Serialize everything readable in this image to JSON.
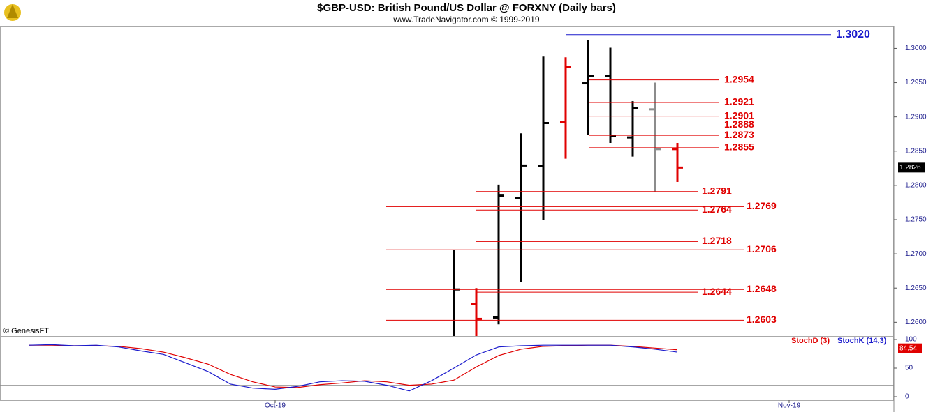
{
  "header": {
    "title": "$GBP-USD:  British Pound/US Dollar @ FORXNY  (Daily bars)",
    "subtitle": "www.TradeNavigator.com © 1999-2019",
    "credit": "© GenesisFT"
  },
  "chart_data": [
    {
      "type": "ohlc",
      "x": [
        19,
        20,
        21,
        22,
        23,
        24,
        25,
        26,
        27,
        28,
        29
      ],
      "open": [
        null,
        1.2627,
        1.2607,
        1.2782,
        1.2828,
        1.2892,
        1.2949,
        1.296,
        1.287,
        1.2911,
        1.2853
      ],
      "high": [
        1.2706,
        1.265,
        1.2801,
        1.2876,
        1.2988,
        1.2987,
        1.3012,
        1.3001,
        1.2923,
        1.295,
        1.2862
      ],
      "low": [
        1.257,
        1.2578,
        1.2597,
        1.2659,
        1.275,
        1.2839,
        1.2874,
        1.2862,
        1.2842,
        1.279,
        1.2805
      ],
      "close": [
        1.2648,
        1.2605,
        1.2785,
        1.2829,
        1.2891,
        1.2973,
        1.296,
        1.2872,
        1.2913,
        1.2853,
        1.2826
      ],
      "colors": [
        "#000000",
        "#e00000",
        "#000000",
        "#000000",
        "#000000",
        "#e00000",
        "#000000",
        "#000000",
        "#000000",
        "#8c8c8c",
        "#e00000"
      ],
      "xlim": [
        -1.3125,
        38.6875
      ],
      "ylim": [
        1.2581,
        1.3032
      ],
      "yticks": [
        {
          "value": 1.26,
          "label": "1.2600"
        },
        {
          "value": 1.265,
          "label": "1.2650"
        },
        {
          "value": 1.27,
          "label": "1.2700"
        },
        {
          "value": 1.275,
          "label": "1.2750"
        },
        {
          "value": 1.28,
          "label": "1.2800"
        },
        {
          "value": 1.285,
          "label": "1.2850"
        },
        {
          "value": 1.29,
          "label": "1.2900"
        },
        {
          "value": 1.295,
          "label": "1.2950"
        },
        {
          "value": 1.3,
          "label": "1.3000"
        }
      ],
      "last_price": {
        "value": 1.2826,
        "label": "1.2826"
      },
      "levels": [
        {
          "value": 1.302,
          "label": "1.3020",
          "color": "#1a1acc"
        },
        {
          "value": 1.2954,
          "label": "1.2954",
          "color": "#e00000"
        },
        {
          "value": 1.2921,
          "label": "1.2921",
          "color": "#e00000"
        },
        {
          "value": 1.2901,
          "label": "1.2901",
          "color": "#e00000"
        },
        {
          "value": 1.2888,
          "label": "1.2888",
          "color": "#e00000"
        },
        {
          "value": 1.2873,
          "label": "1.2873",
          "color": "#e00000"
        },
        {
          "value": 1.2855,
          "label": "1.2855",
          "color": "#e00000"
        },
        {
          "value": 1.2791,
          "label": "1.2791",
          "color": "#e00000"
        },
        {
          "value": 1.2769,
          "label": "1.2769",
          "color": "#e00000"
        },
        {
          "value": 1.2764,
          "label": "1.2764",
          "color": "#e00000"
        },
        {
          "value": 1.2718,
          "label": "1.2718",
          "color": "#e00000"
        },
        {
          "value": 1.2706,
          "label": "1.2706",
          "color": "#e00000"
        },
        {
          "value": 1.2648,
          "label": "1.2648",
          "color": "#e00000"
        },
        {
          "value": 1.2644,
          "label": "1.2644",
          "color": "#e00000"
        },
        {
          "value": 1.2603,
          "label": "1.2603",
          "color": "#e00000"
        }
      ]
    },
    {
      "type": "line",
      "x": [
        0,
        1,
        2,
        3,
        4,
        5,
        6,
        7,
        8,
        9,
        10,
        11,
        12,
        13,
        14,
        15,
        16,
        17,
        18,
        19,
        20,
        21,
        22,
        23,
        24,
        25,
        26,
        27,
        28,
        29
      ],
      "series": [
        {
          "name": "StochD (3)",
          "color": "#e00000",
          "values": [
            90,
            90,
            89,
            89,
            88,
            84,
            78,
            68,
            57,
            39,
            26,
            17,
            16,
            21,
            24,
            28,
            26,
            20,
            22,
            29,
            52,
            72,
            83,
            88,
            89,
            90,
            90,
            88,
            85,
            82
          ]
        },
        {
          "name": "StochK (14,3)",
          "color": "#1a1acc",
          "values": [
            90,
            91,
            89,
            90,
            87,
            80,
            74,
            59,
            44,
            22,
            15,
            13,
            18,
            26,
            28,
            27,
            20,
            10,
            28,
            50,
            73,
            87,
            89,
            90,
            90,
            90,
            90,
            87,
            83,
            78
          ]
        }
      ],
      "xlim": [
        -1.3125,
        38.6875
      ],
      "xticks": [
        {
          "value": 11,
          "label": "Oct-19"
        },
        {
          "value": 34,
          "label": "Nov-19"
        }
      ],
      "ylim": [
        0,
        100
      ],
      "yticks": [
        0,
        50,
        100
      ],
      "levels": [
        80,
        20
      ],
      "readout": {
        "value": 84.54,
        "label": "84.54"
      }
    }
  ]
}
